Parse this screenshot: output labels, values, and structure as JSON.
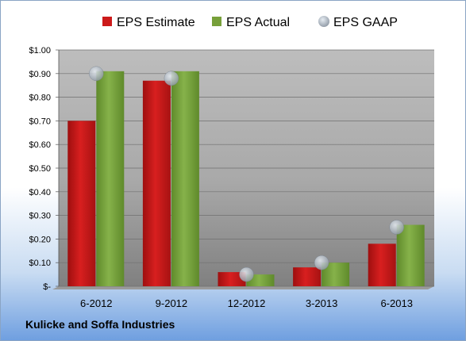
{
  "company": "Kulicke and Soffa Industries",
  "chart_data": {
    "type": "bar",
    "categories": [
      "6-2012",
      "9-2012",
      "12-2012",
      "3-2013",
      "6-2013"
    ],
    "series": [
      {
        "name": "EPS Estimate",
        "type": "bar",
        "color": "#cc1a1a",
        "values": [
          0.7,
          0.87,
          0.06,
          0.08,
          0.18
        ]
      },
      {
        "name": "EPS Actual",
        "type": "bar",
        "color": "#77a03a",
        "values": [
          0.91,
          0.91,
          0.05,
          0.1,
          0.26
        ]
      },
      {
        "name": "EPS GAAP",
        "type": "scatter",
        "color": "#aab4c0",
        "values": [
          0.9,
          0.88,
          0.05,
          0.1,
          0.25
        ]
      }
    ],
    "ylim": [
      0,
      1.0
    ],
    "yticks": [
      "$-",
      "$0.10",
      "$0.20",
      "$0.30",
      "$0.40",
      "$0.50",
      "$0.60",
      "$0.70",
      "$0.80",
      "$0.90",
      "$1.00"
    ],
    "grid": true,
    "legend_position": "top"
  }
}
